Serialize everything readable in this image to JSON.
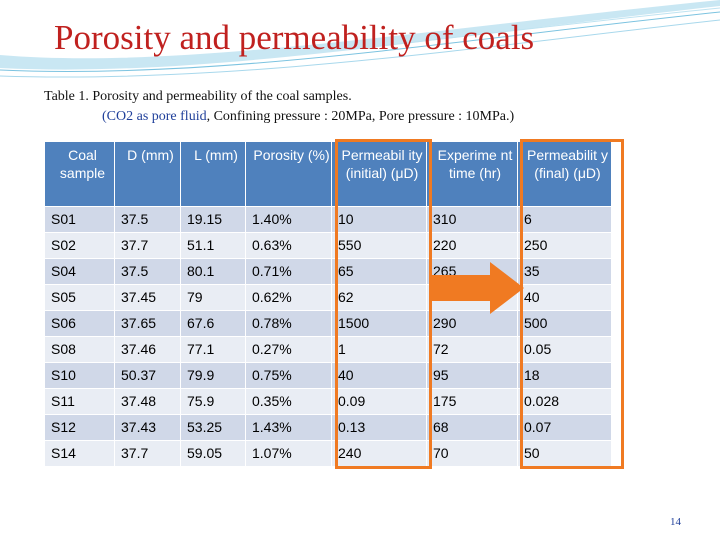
{
  "slide": {
    "title": "Porosity and permeability of coals",
    "caption_line1": "Table 1. Porosity and permeability of the coal samples.",
    "caption_line2_prefix": "(CO2 as pore fluid",
    "caption_line2_suffix": ", Confining pressure : 20MPa, Pore pressure : 10MPa.)",
    "page_number": "14"
  },
  "colors": {
    "title": "#c0211f",
    "header_bg": "#4f81bd",
    "row_odd_bg": "#d0d8e8",
    "row_even_bg": "#e9edf4",
    "highlight": "#f07a22"
  },
  "icons": {
    "arrow": "right-arrow-icon",
    "swoosh": "decorative-swoosh"
  },
  "table": {
    "headers": [
      "Coal sample",
      "D (mm)",
      "L (mm)",
      "Porosity (%)",
      "Permeabil ity (initial) (μD)",
      "Experime nt time (hr)",
      "Permeabilit y (final) (μD)"
    ],
    "rows": [
      [
        "S01",
        "37.5",
        "19.15",
        "1.40%",
        "10",
        "310",
        "6"
      ],
      [
        "S02",
        "37.7",
        "51.1",
        "0.63%",
        "550",
        "220",
        "250"
      ],
      [
        "S04",
        "37.5",
        "80.1",
        "0.71%",
        "65",
        "265",
        "35"
      ],
      [
        "S05",
        "37.45",
        "79",
        "0.62%",
        "62",
        "",
        "40"
      ],
      [
        "S06",
        "37.65",
        "67.6",
        "0.78%",
        "1500",
        "290",
        "500"
      ],
      [
        "S08",
        "37.46",
        "77.1",
        "0.27%",
        "1",
        "72",
        "0.05"
      ],
      [
        "S10",
        "50.37",
        "79.9",
        "0.75%",
        "40",
        "95",
        "18"
      ],
      [
        "S11",
        "37.48",
        "75.9",
        "0.35%",
        "0.09",
        "175",
        "0.028"
      ],
      [
        "S12",
        "37.43",
        "53.25",
        "1.43%",
        "0.13",
        "68",
        "0.07"
      ],
      [
        "S14",
        "37.7",
        "59.05",
        "1.07%",
        "240",
        "70",
        "50"
      ]
    ]
  }
}
